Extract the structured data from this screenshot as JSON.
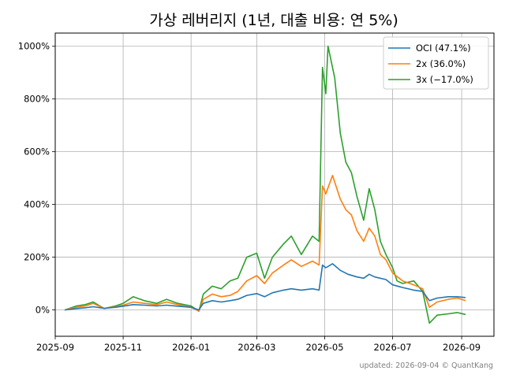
{
  "chart_data": {
    "type": "line",
    "title": "가상 레버리지 (1년, 대출 비용: 연 5%)",
    "footer": "updated: 2026-09-04 © QuantKang",
    "xlabel": "",
    "ylabel": "",
    "grid": true,
    "legend_position": "top-right",
    "xlim": [
      "2025-09-01",
      "2026-09-30"
    ],
    "ylim": [
      -100,
      1050
    ],
    "x_ticks": [
      "2025-09",
      "2025-11",
      "2026-01",
      "2026-03",
      "2026-05",
      "2026-07",
      "2026-09"
    ],
    "y_ticks": [
      0,
      200,
      400,
      600,
      800,
      1000
    ],
    "y_tick_labels": [
      "0%",
      "200%",
      "400%",
      "600%",
      "800%",
      "1000%"
    ],
    "series": [
      {
        "name": "OCI (47.1%)",
        "color": "#1f77b4",
        "points": [
          [
            "2025-09-10",
            0
          ],
          [
            "2025-09-20",
            5
          ],
          [
            "2025-09-28",
            8
          ],
          [
            "2025-10-05",
            12
          ],
          [
            "2025-10-15",
            6
          ],
          [
            "2025-10-25",
            10
          ],
          [
            "2025-11-01",
            14
          ],
          [
            "2025-11-10",
            20
          ],
          [
            "2025-11-20",
            18
          ],
          [
            "2025-12-01",
            15
          ],
          [
            "2025-12-10",
            18
          ],
          [
            "2025-12-20",
            14
          ],
          [
            "2026-01-01",
            10
          ],
          [
            "2026-01-08",
            0
          ],
          [
            "2026-01-12",
            25
          ],
          [
            "2026-01-20",
            35
          ],
          [
            "2026-01-28",
            30
          ],
          [
            "2026-02-05",
            35
          ],
          [
            "2026-02-12",
            40
          ],
          [
            "2026-02-20",
            55
          ],
          [
            "2026-03-01",
            62
          ],
          [
            "2026-03-08",
            50
          ],
          [
            "2026-03-15",
            65
          ],
          [
            "2026-03-25",
            75
          ],
          [
            "2026-04-01",
            80
          ],
          [
            "2026-04-10",
            75
          ],
          [
            "2026-04-20",
            80
          ],
          [
            "2026-04-26",
            75
          ],
          [
            "2026-04-29",
            170
          ],
          [
            "2026-05-02",
            160
          ],
          [
            "2026-05-08",
            175
          ],
          [
            "2026-05-15",
            150
          ],
          [
            "2026-05-22",
            135
          ],
          [
            "2026-05-30",
            125
          ],
          [
            "2026-06-05",
            120
          ],
          [
            "2026-06-10",
            135
          ],
          [
            "2026-06-15",
            125
          ],
          [
            "2026-06-25",
            115
          ],
          [
            "2026-07-01",
            95
          ],
          [
            "2026-07-10",
            85
          ],
          [
            "2026-07-20",
            75
          ],
          [
            "2026-07-28",
            70
          ],
          [
            "2026-08-03",
            35
          ],
          [
            "2026-08-10",
            45
          ],
          [
            "2026-08-20",
            50
          ],
          [
            "2026-08-28",
            50
          ],
          [
            "2026-09-04",
            47
          ]
        ]
      },
      {
        "name": "2x (36.0%)",
        "color": "#ff7f0e",
        "points": [
          [
            "2025-09-10",
            0
          ],
          [
            "2025-09-20",
            10
          ],
          [
            "2025-09-28",
            15
          ],
          [
            "2025-10-05",
            25
          ],
          [
            "2025-10-15",
            5
          ],
          [
            "2025-10-25",
            12
          ],
          [
            "2025-11-01",
            18
          ],
          [
            "2025-11-10",
            30
          ],
          [
            "2025-11-20",
            25
          ],
          [
            "2025-12-01",
            20
          ],
          [
            "2025-12-10",
            30
          ],
          [
            "2025-12-20",
            20
          ],
          [
            "2026-01-01",
            10
          ],
          [
            "2026-01-08",
            -5
          ],
          [
            "2026-01-12",
            40
          ],
          [
            "2026-01-20",
            60
          ],
          [
            "2026-01-28",
            50
          ],
          [
            "2026-02-05",
            55
          ],
          [
            "2026-02-12",
            70
          ],
          [
            "2026-02-20",
            110
          ],
          [
            "2026-03-01",
            130
          ],
          [
            "2026-03-08",
            100
          ],
          [
            "2026-03-15",
            140
          ],
          [
            "2026-03-25",
            170
          ],
          [
            "2026-04-01",
            190
          ],
          [
            "2026-04-10",
            165
          ],
          [
            "2026-04-20",
            185
          ],
          [
            "2026-04-26",
            170
          ],
          [
            "2026-04-29",
            470
          ],
          [
            "2026-05-02",
            440
          ],
          [
            "2026-05-08",
            510
          ],
          [
            "2026-05-15",
            420
          ],
          [
            "2026-05-20",
            380
          ],
          [
            "2026-05-25",
            360
          ],
          [
            "2026-05-30",
            300
          ],
          [
            "2026-06-05",
            260
          ],
          [
            "2026-06-10",
            310
          ],
          [
            "2026-06-15",
            280
          ],
          [
            "2026-06-20",
            210
          ],
          [
            "2026-06-25",
            190
          ],
          [
            "2026-07-01",
            140
          ],
          [
            "2026-07-10",
            110
          ],
          [
            "2026-07-20",
            95
          ],
          [
            "2026-07-28",
            80
          ],
          [
            "2026-08-03",
            10
          ],
          [
            "2026-08-10",
            30
          ],
          [
            "2026-08-20",
            40
          ],
          [
            "2026-08-28",
            45
          ],
          [
            "2026-09-04",
            36
          ]
        ]
      },
      {
        "name": "3x (−17.0%)",
        "color": "#2ca02c",
        "points": [
          [
            "2025-09-10",
            0
          ],
          [
            "2025-09-20",
            15
          ],
          [
            "2025-09-28",
            20
          ],
          [
            "2025-10-05",
            30
          ],
          [
            "2025-10-15",
            5
          ],
          [
            "2025-10-25",
            15
          ],
          [
            "2025-11-01",
            25
          ],
          [
            "2025-11-10",
            50
          ],
          [
            "2025-11-20",
            35
          ],
          [
            "2025-12-01",
            25
          ],
          [
            "2025-12-10",
            40
          ],
          [
            "2025-12-20",
            25
          ],
          [
            "2026-01-01",
            15
          ],
          [
            "2026-01-08",
            -5
          ],
          [
            "2026-01-12",
            60
          ],
          [
            "2026-01-20",
            90
          ],
          [
            "2026-01-28",
            80
          ],
          [
            "2026-02-05",
            110
          ],
          [
            "2026-02-12",
            120
          ],
          [
            "2026-02-20",
            200
          ],
          [
            "2026-03-01",
            215
          ],
          [
            "2026-03-08",
            120
          ],
          [
            "2026-03-15",
            200
          ],
          [
            "2026-03-25",
            250
          ],
          [
            "2026-04-01",
            280
          ],
          [
            "2026-04-10",
            210
          ],
          [
            "2026-04-20",
            280
          ],
          [
            "2026-04-26",
            260
          ],
          [
            "2026-04-29",
            920
          ],
          [
            "2026-05-02",
            820
          ],
          [
            "2026-05-04",
            1000
          ],
          [
            "2026-05-10",
            880
          ],
          [
            "2026-05-15",
            670
          ],
          [
            "2026-05-20",
            560
          ],
          [
            "2026-05-25",
            520
          ],
          [
            "2026-05-30",
            430
          ],
          [
            "2026-06-05",
            340
          ],
          [
            "2026-06-10",
            460
          ],
          [
            "2026-06-15",
            380
          ],
          [
            "2026-06-20",
            260
          ],
          [
            "2026-06-25",
            210
          ],
          [
            "2026-07-01",
            160
          ],
          [
            "2026-07-05",
            110
          ],
          [
            "2026-07-10",
            100
          ],
          [
            "2026-07-20",
            110
          ],
          [
            "2026-07-28",
            70
          ],
          [
            "2026-08-03",
            -50
          ],
          [
            "2026-08-10",
            -20
          ],
          [
            "2026-08-20",
            -15
          ],
          [
            "2026-08-28",
            -10
          ],
          [
            "2026-09-04",
            -17
          ]
        ]
      }
    ]
  }
}
